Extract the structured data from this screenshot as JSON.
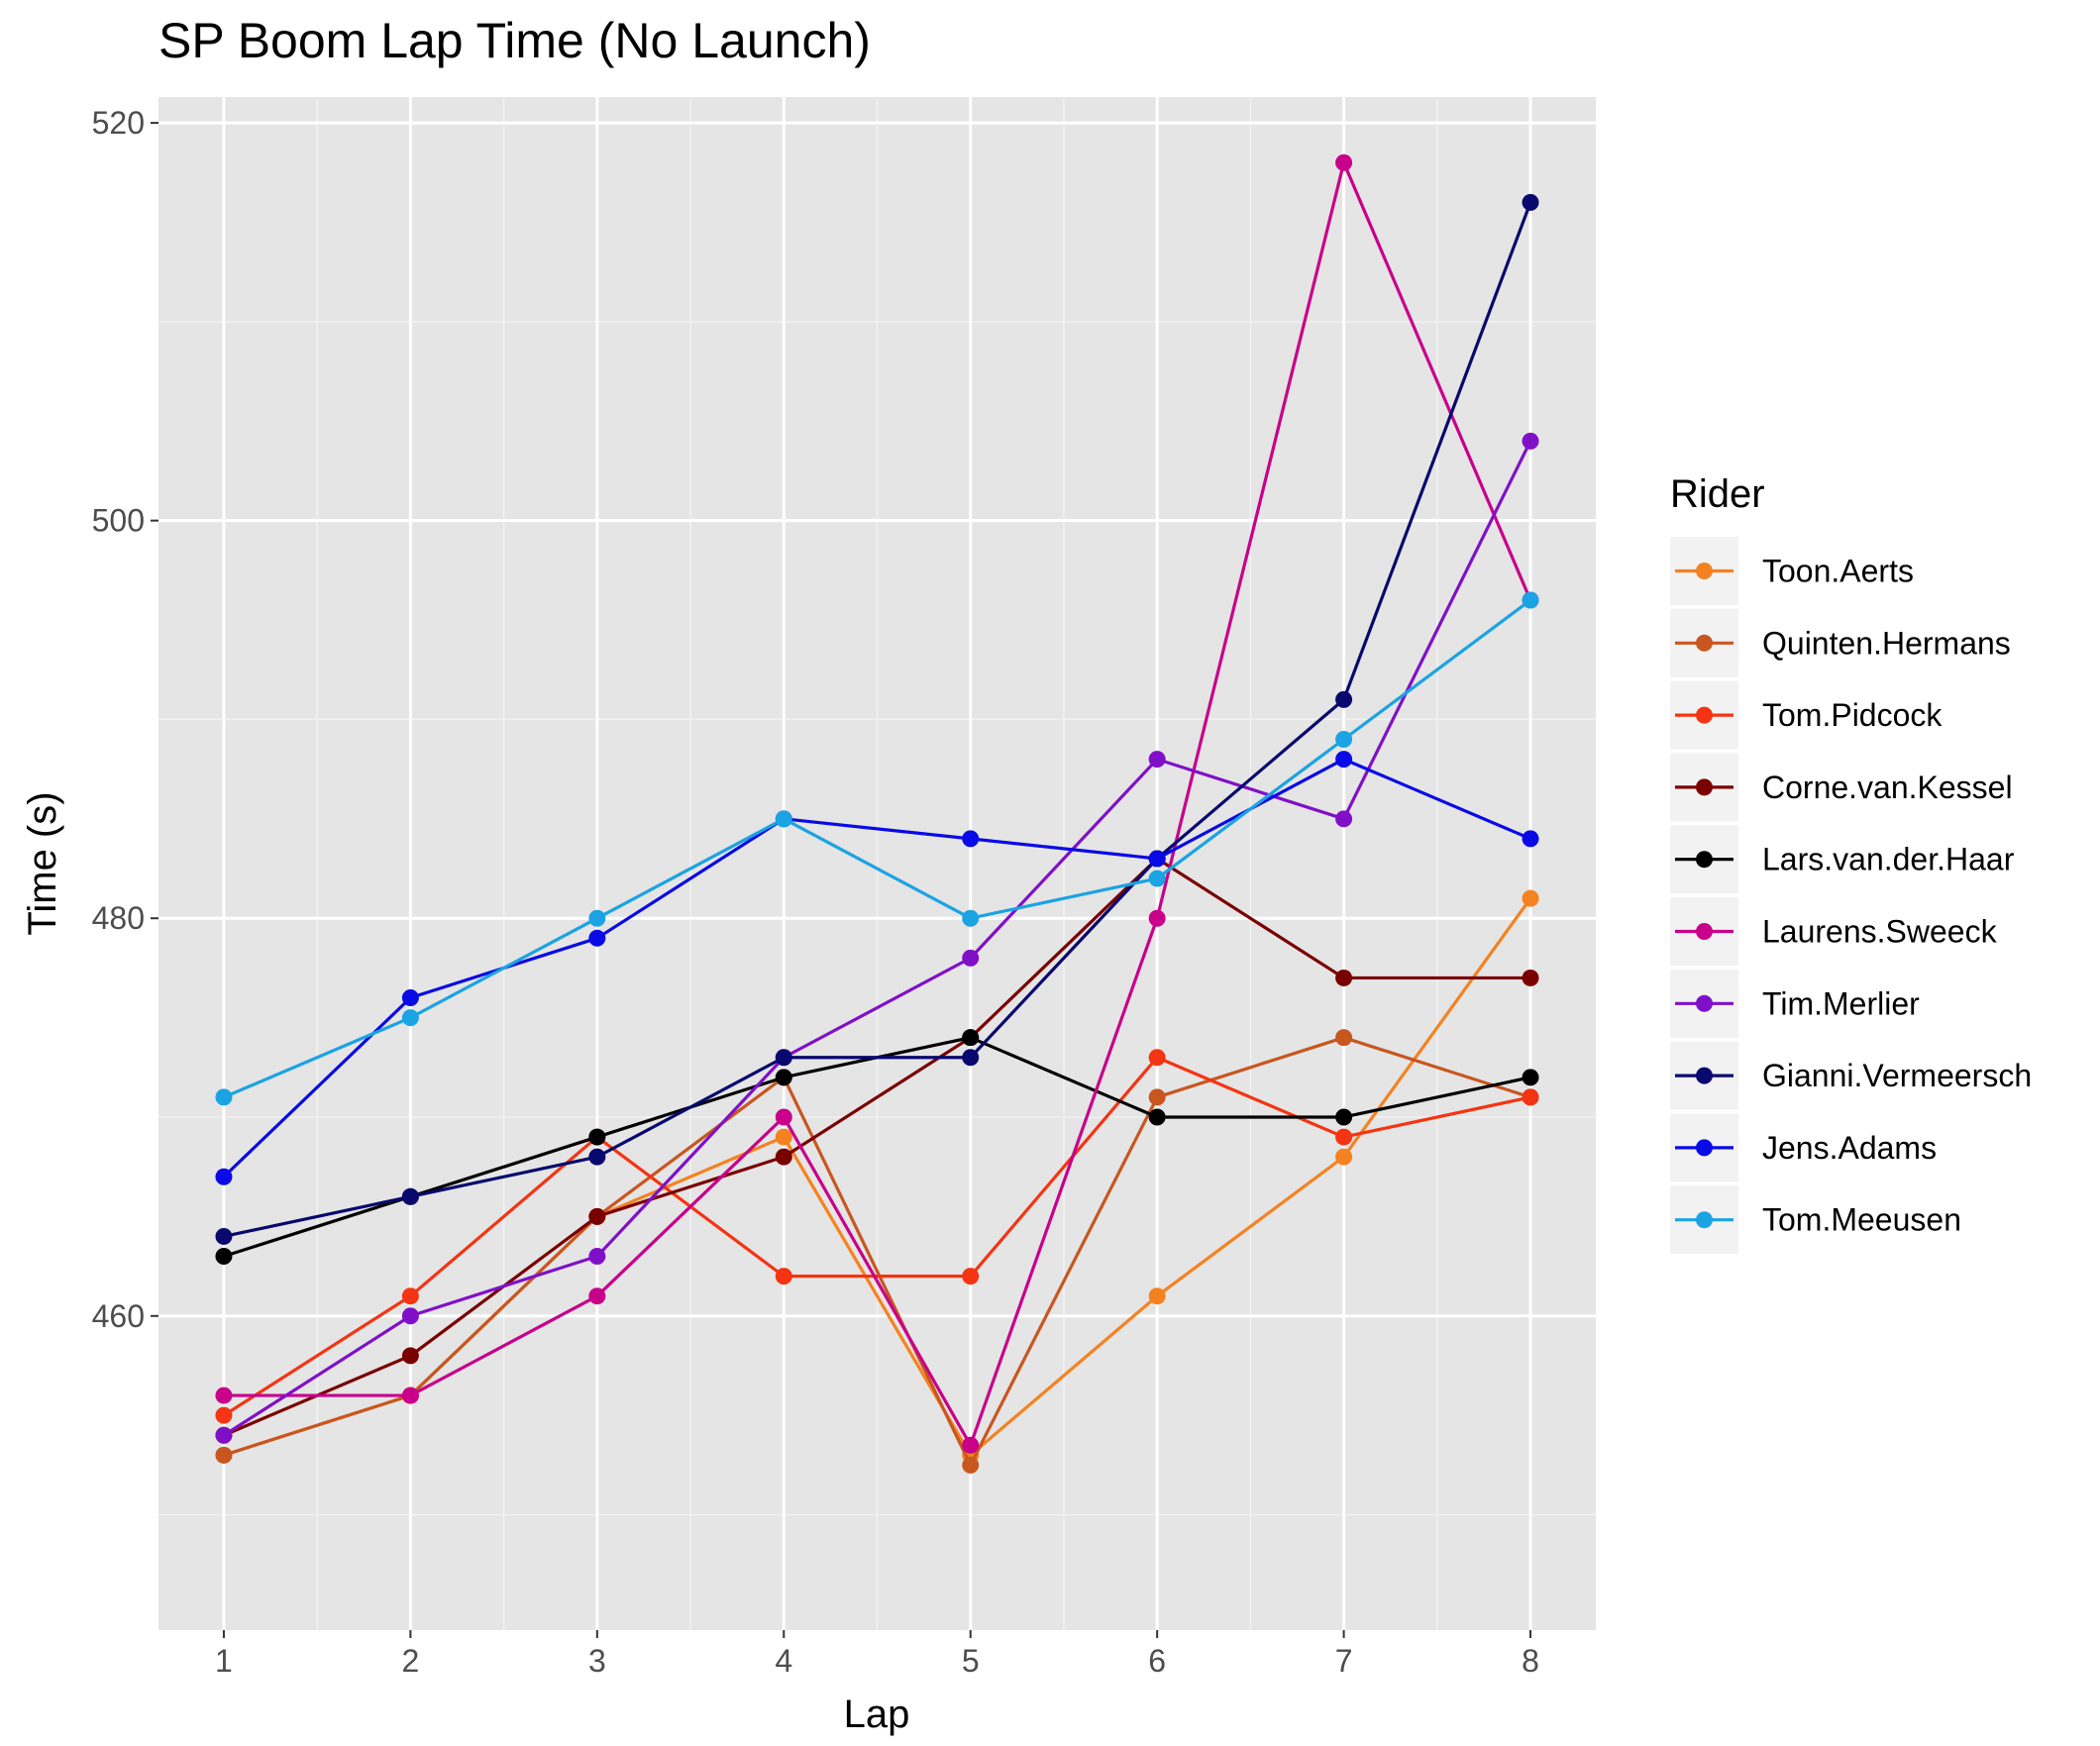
{
  "chart_data": {
    "type": "line",
    "title": "SP Boom Lap Time (No Launch)",
    "xlabel": "Lap",
    "ylabel": "Time (s)",
    "x": [
      1,
      2,
      3,
      4,
      5,
      6,
      7,
      8
    ],
    "xlim": [
      0.65,
      8.35
    ],
    "ylim": [
      444.2,
      521.3
    ],
    "yticks": [
      460,
      480,
      500,
      520
    ],
    "grid": true,
    "legend_title": "Rider",
    "legend_position": "right",
    "series": [
      {
        "name": "Toon.Aerts",
        "color": "#F58220",
        "values": [
          453,
          456,
          465,
          469,
          453,
          461,
          468,
          481
        ]
      },
      {
        "name": "Quinten.Hermans",
        "color": "#C8561F",
        "values": [
          453,
          456,
          465,
          472,
          452.5,
          471,
          474,
          471
        ]
      },
      {
        "name": "Tom.Pidcock",
        "color": "#F43412",
        "values": [
          455,
          461,
          469,
          462,
          462,
          473,
          469,
          471
        ]
      },
      {
        "name": "Corne.van.Kessel",
        "color": "#7A0000",
        "values": [
          454,
          458,
          465,
          468,
          474,
          483,
          477,
          477
        ]
      },
      {
        "name": "Lars.van.der.Haar",
        "color": "#000000",
        "values": [
          463,
          466,
          469,
          472,
          474,
          470,
          470,
          472
        ]
      },
      {
        "name": "Laurens.Sweeck",
        "color": "#C8008A",
        "values": [
          456,
          456,
          461,
          470,
          453.5,
          480,
          518,
          496
        ]
      },
      {
        "name": "Tim.Merlier",
        "color": "#8010C8",
        "values": [
          454,
          460,
          463,
          473,
          478,
          488,
          485,
          504
        ]
      },
      {
        "name": "Gianni.Vermeersch",
        "color": "#08086E",
        "values": [
          464,
          466,
          468,
          473,
          473,
          483,
          491,
          516
        ]
      },
      {
        "name": "Jens.Adams",
        "color": "#0A0AE6",
        "values": [
          467,
          476,
          479,
          485,
          484,
          483,
          488,
          484
        ]
      },
      {
        "name": "Tom.Meeusen",
        "color": "#1BA3E3",
        "values": [
          471,
          475,
          480,
          485,
          480,
          482,
          489,
          496
        ]
      }
    ]
  }
}
